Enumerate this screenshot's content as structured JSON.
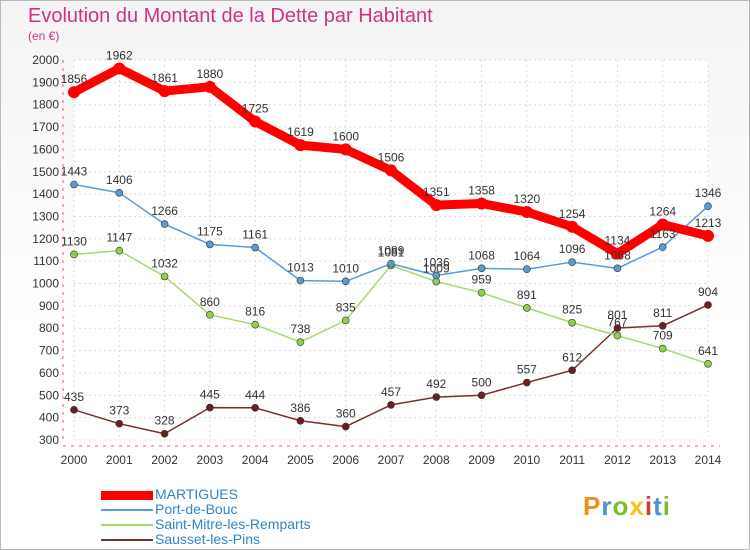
{
  "header": {
    "title": "Evolution du Montant de la Dette par Habitant",
    "unit": "(en €)"
  },
  "logo": {
    "letters": [
      "P",
      "r",
      "o",
      "x",
      "i",
      "t",
      "i"
    ],
    "colors": [
      "#f28c1e",
      "#4a90d9",
      "#7cbf2e",
      "#f6c21c",
      "#d93a2c",
      "#4a90d9",
      "#7cbf2e"
    ]
  },
  "chart_data": {
    "type": "line",
    "title": "Evolution du Montant de la Dette par Habitant",
    "ylabel": "(en €)",
    "x": [
      2000,
      2001,
      2002,
      2003,
      2004,
      2005,
      2006,
      2007,
      2008,
      2009,
      2010,
      2011,
      2012,
      2013,
      2014
    ],
    "ylim": [
      300,
      2000
    ],
    "yticks": [
      300,
      400,
      500,
      600,
      700,
      800,
      900,
      1000,
      1100,
      1200,
      1300,
      1400,
      1500,
      1600,
      1700,
      1800,
      1900,
      2000
    ],
    "grid": true,
    "legend_position": "bottom-left",
    "series": [
      {
        "name": "MARTIGUES",
        "color": "#ff0000",
        "marker": "#ff0000",
        "values": [
          1856,
          1962,
          1861,
          1880,
          1725,
          1619,
          1600,
          1506,
          1351,
          1358,
          1320,
          1254,
          1134,
          1264,
          1213
        ]
      },
      {
        "name": "Port-de-Bouc",
        "color": "#5b9bd5",
        "marker": "#5b9bd5",
        "values": [
          1443,
          1406,
          1266,
          1175,
          1161,
          1013,
          1010,
          1089,
          1036,
          1068,
          1064,
          1096,
          1068,
          1163,
          1346
        ]
      },
      {
        "name": "Saint-Mitre-les-Remparts",
        "color": "#a6d96a",
        "marker": "#8ed14a",
        "values": [
          1130,
          1147,
          1032,
          860,
          816,
          738,
          835,
          1081,
          1009,
          959,
          891,
          825,
          767,
          709,
          641
        ]
      },
      {
        "name": "Sausset-les-Pins",
        "color": "#7a2e2e",
        "marker": "#6b1f1f",
        "values": [
          435,
          373,
          328,
          445,
          444,
          386,
          360,
          457,
          492,
          500,
          557,
          612,
          801,
          811,
          904
        ]
      }
    ]
  }
}
